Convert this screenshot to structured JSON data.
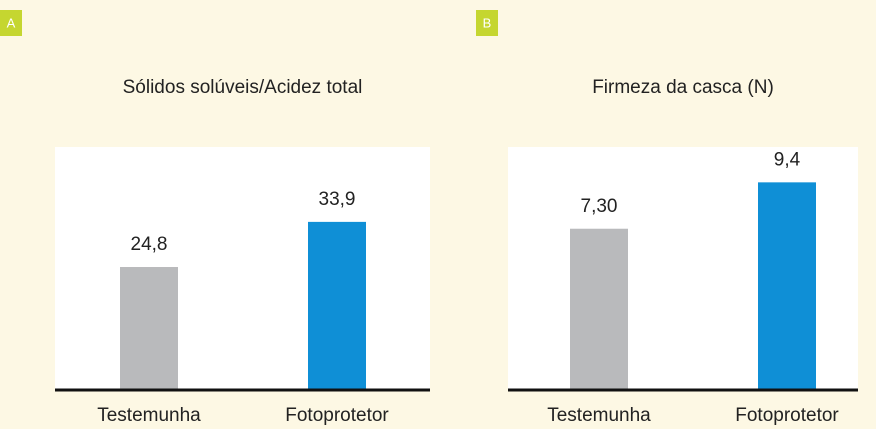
{
  "chart_data": [
    {
      "type": "bar",
      "panel_label": "A",
      "title": "Sólidos solúveis/Acidez total",
      "categories": [
        "Testemunha",
        "Fotoprotetor"
      ],
      "values": [
        24.8,
        33.9
      ],
      "value_labels": [
        "24,8",
        "33,9"
      ],
      "colors": [
        "#b9babc",
        "#0f8fd6"
      ],
      "ylim": [
        0,
        49
      ]
    },
    {
      "type": "bar",
      "panel_label": "B",
      "title": "Firmeza da casca (N)",
      "categories": [
        "Testemunha",
        "Fotoprotetor"
      ],
      "values": [
        7.3,
        9.4
      ],
      "value_labels": [
        "7,30",
        "9,4"
      ],
      "colors": [
        "#b9babc",
        "#0f8fd6"
      ],
      "ylim": [
        0,
        11
      ]
    }
  ]
}
